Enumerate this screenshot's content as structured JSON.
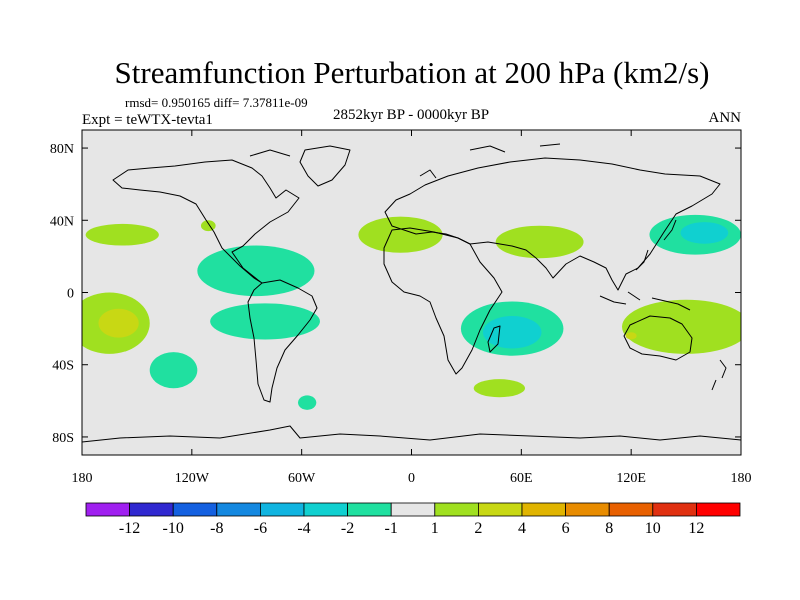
{
  "chart_data": {
    "type": "heatmap",
    "title": "Streamfunction Perturbation at 200 hPa (km2/s)",
    "subtitle_stats": "rmsd= 0.950165 diff= 7.37811e-09",
    "experiment": "Expt = teWTX-tevta1",
    "period": "2852kyr BP - 0000kyr BP",
    "season": "ANN",
    "x_ticks": [
      "180",
      "120W",
      "60W",
      "0",
      "60E",
      "120E",
      "180"
    ],
    "x_tick_values": [
      -180,
      -120,
      -60,
      0,
      60,
      120,
      180
    ],
    "y_ticks": [
      "80N",
      "40N",
      "0",
      "40S",
      "80S"
    ],
    "y_tick_values": [
      80,
      40,
      0,
      -40,
      -80
    ],
    "xlim": [
      -180,
      180
    ],
    "ylim": [
      -90,
      90
    ],
    "colorbar": {
      "labels": [
        "-12",
        "-10",
        "-8",
        "-6",
        "-4",
        "-2",
        "-1",
        "1",
        "2",
        "4",
        "6",
        "8",
        "10",
        "12"
      ],
      "colors": [
        "#a020f0",
        "#3028d0",
        "#1460e0",
        "#1488e0",
        "#10b4e0",
        "#10d0d0",
        "#20e0a0",
        "#e6e6e6",
        "#a0e020",
        "#c8d814",
        "#e0b400",
        "#e88c00",
        "#e86000",
        "#e03010",
        "#ff0000"
      ]
    },
    "anomaly_regions": [
      {
        "name": "north-pacific-east",
        "level": "2",
        "color": "#a0e020",
        "lon": -158,
        "lat": 32,
        "rlon": 20,
        "rlat": 6
      },
      {
        "name": "mexico-small",
        "level": "2",
        "color": "#a0e020",
        "lon": -111,
        "lat": 37,
        "rlon": 4,
        "rlat": 3
      },
      {
        "name": "central-america-arc",
        "level": "-2",
        "color": "#20e0a0",
        "lon": -85,
        "lat": 12,
        "rlon": 32,
        "rlat": 14
      },
      {
        "name": "south-america-band",
        "level": "-2",
        "color": "#20e0a0",
        "lon": -80,
        "lat": -16,
        "rlon": 30,
        "rlat": 10
      },
      {
        "name": "south-pacific-west",
        "level": "2",
        "color": "#a0e020",
        "lon": -165,
        "lat": -17,
        "rlon": 22,
        "rlat": 17
      },
      {
        "name": "south-pacific-core",
        "level": "4",
        "color": "#c8d814",
        "lon": -160,
        "lat": -17,
        "rlon": 11,
        "rlat": 8
      },
      {
        "name": "south-pacific-east",
        "level": "-2",
        "color": "#20e0a0",
        "lon": -130,
        "lat": -43,
        "rlon": 13,
        "rlat": 10
      },
      {
        "name": "south-atlantic-small",
        "level": "-2",
        "color": "#20e0a0",
        "lon": -57,
        "lat": -61,
        "rlon": 5,
        "rlat": 4
      },
      {
        "name": "north-atlantic-europe",
        "level": "2",
        "color": "#a0e020",
        "lon": -6,
        "lat": 32,
        "rlon": 23,
        "rlat": 10
      },
      {
        "name": "asia-central",
        "level": "2",
        "color": "#a0e020",
        "lon": 70,
        "lat": 28,
        "rlon": 24,
        "rlat": 9
      },
      {
        "name": "north-pacific-west",
        "level": "-2",
        "color": "#20e0a0",
        "lon": 155,
        "lat": 32,
        "rlon": 25,
        "rlat": 11
      },
      {
        "name": "north-pacific-west-core",
        "level": "-4",
        "color": "#10d0d0",
        "lon": 160,
        "lat": 33,
        "rlon": 13,
        "rlat": 6
      },
      {
        "name": "south-indian-ocean",
        "level": "-2",
        "color": "#20e0a0",
        "lon": 55,
        "lat": -20,
        "rlon": 28,
        "rlat": 15
      },
      {
        "name": "south-indian-core",
        "level": "-4",
        "color": "#10d0d0",
        "lon": 55,
        "lat": -22,
        "rlon": 16,
        "rlat": 9
      },
      {
        "name": "southern-ocean-indian",
        "level": "2",
        "color": "#a0e020",
        "lon": 48,
        "lat": -53,
        "rlon": 14,
        "rlat": 5
      },
      {
        "name": "australia-band",
        "level": "2",
        "color": "#a0e020",
        "lon": 150,
        "lat": -19,
        "rlon": 35,
        "rlat": 15
      },
      {
        "name": "australia-west-spot",
        "level": "4",
        "color": "#c8d814",
        "lon": 120,
        "lat": -24,
        "rlon": 3,
        "rlat": 2
      }
    ]
  }
}
